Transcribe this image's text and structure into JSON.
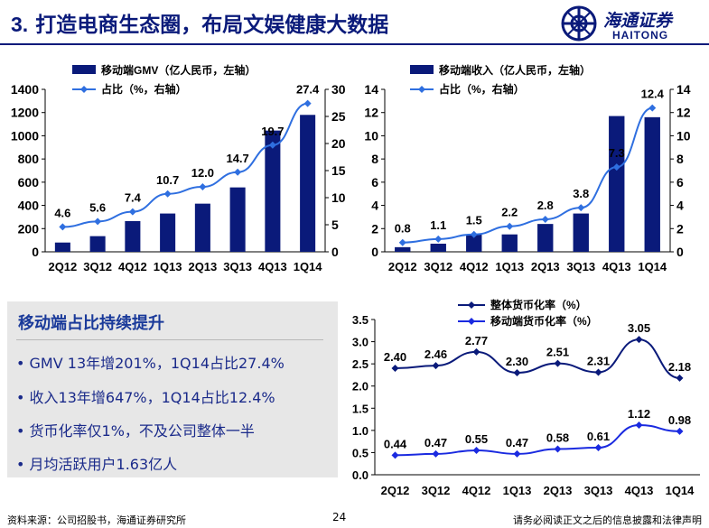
{
  "header": {
    "title_number": "3.",
    "title_text": "打造电商生态圈，布局文娱健康大数据",
    "logo_cn": "海通证券",
    "logo_en": "HAITONG",
    "logo_icon": "haitong-emblem-icon"
  },
  "colors": {
    "bar": "#0a1a7a",
    "line": "#2f6fe0",
    "title": "#0a1a7a",
    "box_bg": "#e7e7e7"
  },
  "chart_data": [
    {
      "type": "bar",
      "legend": [
        "移动端GMV（亿人民币，左轴）",
        "占比（%，右轴）"
      ],
      "categories": [
        "2Q12",
        "3Q12",
        "4Q12",
        "1Q13",
        "2Q13",
        "3Q13",
        "4Q13",
        "1Q14"
      ],
      "series": [
        {
          "name": "移动端GMV（亿人民币，左轴）",
          "type": "bar",
          "axis": "left",
          "values": [
            80,
            135,
            265,
            330,
            415,
            555,
            1045,
            1180
          ]
        },
        {
          "name": "占比（%，右轴）",
          "type": "line",
          "axis": "right",
          "values": [
            4.6,
            5.6,
            7.4,
            10.7,
            12.0,
            14.7,
            19.7,
            27.4
          ],
          "labels": [
            "4.6",
            "5.6",
            "7.4",
            "10.7",
            "12.0",
            "14.7",
            "19.7",
            "27.4"
          ]
        }
      ],
      "left_ticks": [
        "0",
        "200",
        "400",
        "600",
        "800",
        "1000",
        "1200",
        "1400"
      ],
      "right_ticks": [
        "0",
        "5",
        "10",
        "15",
        "20",
        "25",
        "30"
      ],
      "ylim_left": [
        0,
        1400
      ],
      "ylim_right": [
        0,
        30
      ]
    },
    {
      "type": "bar",
      "legend": [
        "移动端收入（亿人民币，左轴）",
        "占比（%，右轴）"
      ],
      "categories": [
        "2Q12",
        "3Q12",
        "4Q12",
        "1Q13",
        "2Q13",
        "3Q13",
        "4Q13",
        "1Q14"
      ],
      "series": [
        {
          "name": "移动端收入（亿人民币，左轴）",
          "type": "bar",
          "axis": "left",
          "values": [
            0.4,
            0.7,
            1.5,
            1.5,
            2.4,
            3.3,
            11.7,
            11.6
          ]
        },
        {
          "name": "占比（%，右轴）",
          "type": "line",
          "axis": "right",
          "values": [
            0.8,
            1.1,
            1.5,
            2.2,
            2.8,
            3.8,
            7.3,
            12.4
          ],
          "labels": [
            "0.8",
            "1.1",
            "1.5",
            "2.2",
            "2.8",
            "3.8",
            "7.3",
            "12.4"
          ]
        }
      ],
      "left_ticks": [
        "0",
        "2",
        "4",
        "6",
        "8",
        "10",
        "12",
        "14"
      ],
      "right_ticks": [
        "0",
        "2",
        "4",
        "6",
        "8",
        "10",
        "12",
        "14"
      ],
      "ylim_left": [
        0,
        14
      ],
      "ylim_right": [
        0,
        14
      ]
    },
    {
      "type": "line",
      "legend": [
        "整体货币化率（%）",
        "移动端货币化率（%）"
      ],
      "categories": [
        "2Q12",
        "3Q12",
        "4Q12",
        "1Q13",
        "2Q13",
        "3Q13",
        "4Q13",
        "1Q14"
      ],
      "series": [
        {
          "name": "整体货币化率（%）",
          "values": [
            2.4,
            2.46,
            2.77,
            2.3,
            2.51,
            2.31,
            3.05,
            2.18
          ],
          "labels": [
            "2.40",
            "2.46",
            "2.77",
            "2.30",
            "2.51",
            "2.31",
            "3.05",
            "2.18"
          ],
          "marker": "diamond",
          "color": "#0a1a7a"
        },
        {
          "name": "移动端货币化率（%）",
          "values": [
            0.44,
            0.47,
            0.55,
            0.47,
            0.58,
            0.61,
            1.12,
            0.98
          ],
          "labels": [
            "0.44",
            "0.47",
            "0.55",
            "0.47",
            "0.58",
            "0.61",
            "1.12",
            "0.98"
          ],
          "marker": "diamond",
          "color": "#1a2ae0"
        }
      ],
      "y_ticks": [
        "0.0",
        "0.5",
        "1.0",
        "1.5",
        "2.0",
        "2.5",
        "3.0",
        "3.5"
      ],
      "ylim": [
        0,
        3.5
      ]
    }
  ],
  "summary": {
    "title": "移动端占比持续提升",
    "bullets": [
      "• GMV 13年增201%，1Q14占比27.4%",
      "• 收入13年增647%，1Q14占比12.4%",
      "• 货币化率仅1%，不及公司整体一半",
      "• 月均活跃用户1.63亿人"
    ]
  },
  "footer": {
    "source": "资料来源：公司招股书，海通证券研究所",
    "page": "24",
    "disclaimer": "请务必阅读正文之后的信息披露和法律声明"
  }
}
